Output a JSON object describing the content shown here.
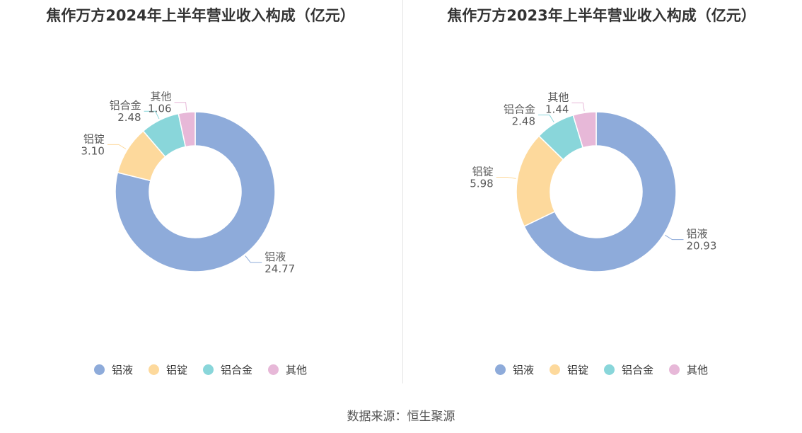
{
  "source": "数据来源：恒生聚源",
  "chart_data": [
    {
      "type": "pie",
      "title": "焦作万方2024年上半年营业收入构成（亿元）",
      "donut": true,
      "legend_position": "bottom",
      "series": [
        {
          "name": "铝液",
          "value": 24.77,
          "label": "24.77"
        },
        {
          "name": "铝锭",
          "value": 3.1,
          "label": "3.10"
        },
        {
          "name": "铝合金",
          "value": 2.48,
          "label": "2.48"
        },
        {
          "name": "其他",
          "value": 1.06,
          "label": "1.06"
        }
      ]
    },
    {
      "type": "pie",
      "title": "焦作万方2023年上半年营业收入构成（亿元）",
      "donut": true,
      "legend_position": "bottom",
      "series": [
        {
          "name": "铝液",
          "value": 20.93,
          "label": "20.93"
        },
        {
          "name": "铝锭",
          "value": 5.98,
          "label": "5.98"
        },
        {
          "name": "铝合金",
          "value": 2.48,
          "label": "2.48"
        },
        {
          "name": "其他",
          "value": 1.44,
          "label": "1.44"
        }
      ]
    }
  ],
  "colors": [
    "#8eabda",
    "#fdd99c",
    "#89d6da",
    "#e7b8d8"
  ]
}
